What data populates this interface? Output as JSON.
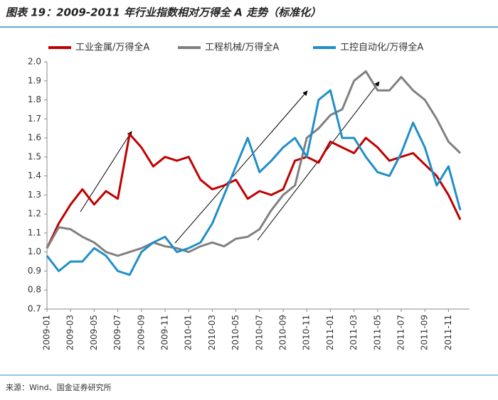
{
  "chart_data": {
    "type": "line",
    "title": "图表 19：2009-2011 年行业指数相对万得全 A 走势（标准化）",
    "source": "来源：Wind、国金证券研究所",
    "categories": [
      "2009-01",
      null,
      "2009-03",
      null,
      "2009-05",
      null,
      "2009-07",
      null,
      "2009-09",
      null,
      "2009-11",
      null,
      "2010-01",
      null,
      "2010-03",
      null,
      "2010-05",
      null,
      "2010-07",
      null,
      "2010-09",
      null,
      "2010-11",
      null,
      "2011-01",
      null,
      "2011-03",
      null,
      "2011-05",
      null,
      "2011-07",
      null,
      "2011-09",
      null,
      "2011-11",
      null
    ],
    "series": [
      {
        "name": "工业金属/万得全A",
        "color": "#c00000",
        "values": [
          1.02,
          1.15,
          1.25,
          1.33,
          1.25,
          1.32,
          1.28,
          1.62,
          1.55,
          1.45,
          1.5,
          1.48,
          1.5,
          1.38,
          1.33,
          1.35,
          1.38,
          1.28,
          1.32,
          1.3,
          1.33,
          1.48,
          1.5,
          1.47,
          1.58,
          1.55,
          1.52,
          1.6,
          1.55,
          1.48,
          1.5,
          1.52,
          1.46,
          1.4,
          1.3,
          1.17
        ]
      },
      {
        "name": "工程机械/万得全A",
        "color": "#808080",
        "values": [
          1.02,
          1.13,
          1.12,
          1.08,
          1.05,
          1.0,
          0.98,
          1.0,
          1.02,
          1.05,
          1.03,
          1.02,
          1.0,
          1.03,
          1.05,
          1.03,
          1.07,
          1.08,
          1.12,
          1.22,
          1.3,
          1.35,
          1.6,
          1.65,
          1.72,
          1.75,
          1.9,
          1.95,
          1.85,
          1.85,
          1.92,
          1.85,
          1.8,
          1.7,
          1.58,
          1.52
        ]
      },
      {
        "name": "工控自动化/万得全A",
        "color": "#1f8fc8",
        "values": [
          0.98,
          0.9,
          0.95,
          0.95,
          1.02,
          0.98,
          0.9,
          0.88,
          1.0,
          1.05,
          1.08,
          1.0,
          1.02,
          1.05,
          1.15,
          1.3,
          1.45,
          1.6,
          1.42,
          1.48,
          1.55,
          1.6,
          1.5,
          1.8,
          1.85,
          1.6,
          1.6,
          1.5,
          1.42,
          1.4,
          1.52,
          1.68,
          1.55,
          1.35,
          1.45,
          1.22
        ]
      }
    ],
    "ylim": [
      0.7,
      2.0
    ],
    "yticks": [
      0.7,
      0.8,
      0.9,
      {
        "value": 1,
        "label": "1.0"
      },
      1.1,
      1.2,
      1.3,
      1.4,
      1.5,
      1.6,
      1.7,
      1.8,
      1.9,
      {
        "value": 2,
        "label": "2.0"
      }
    ]
  }
}
